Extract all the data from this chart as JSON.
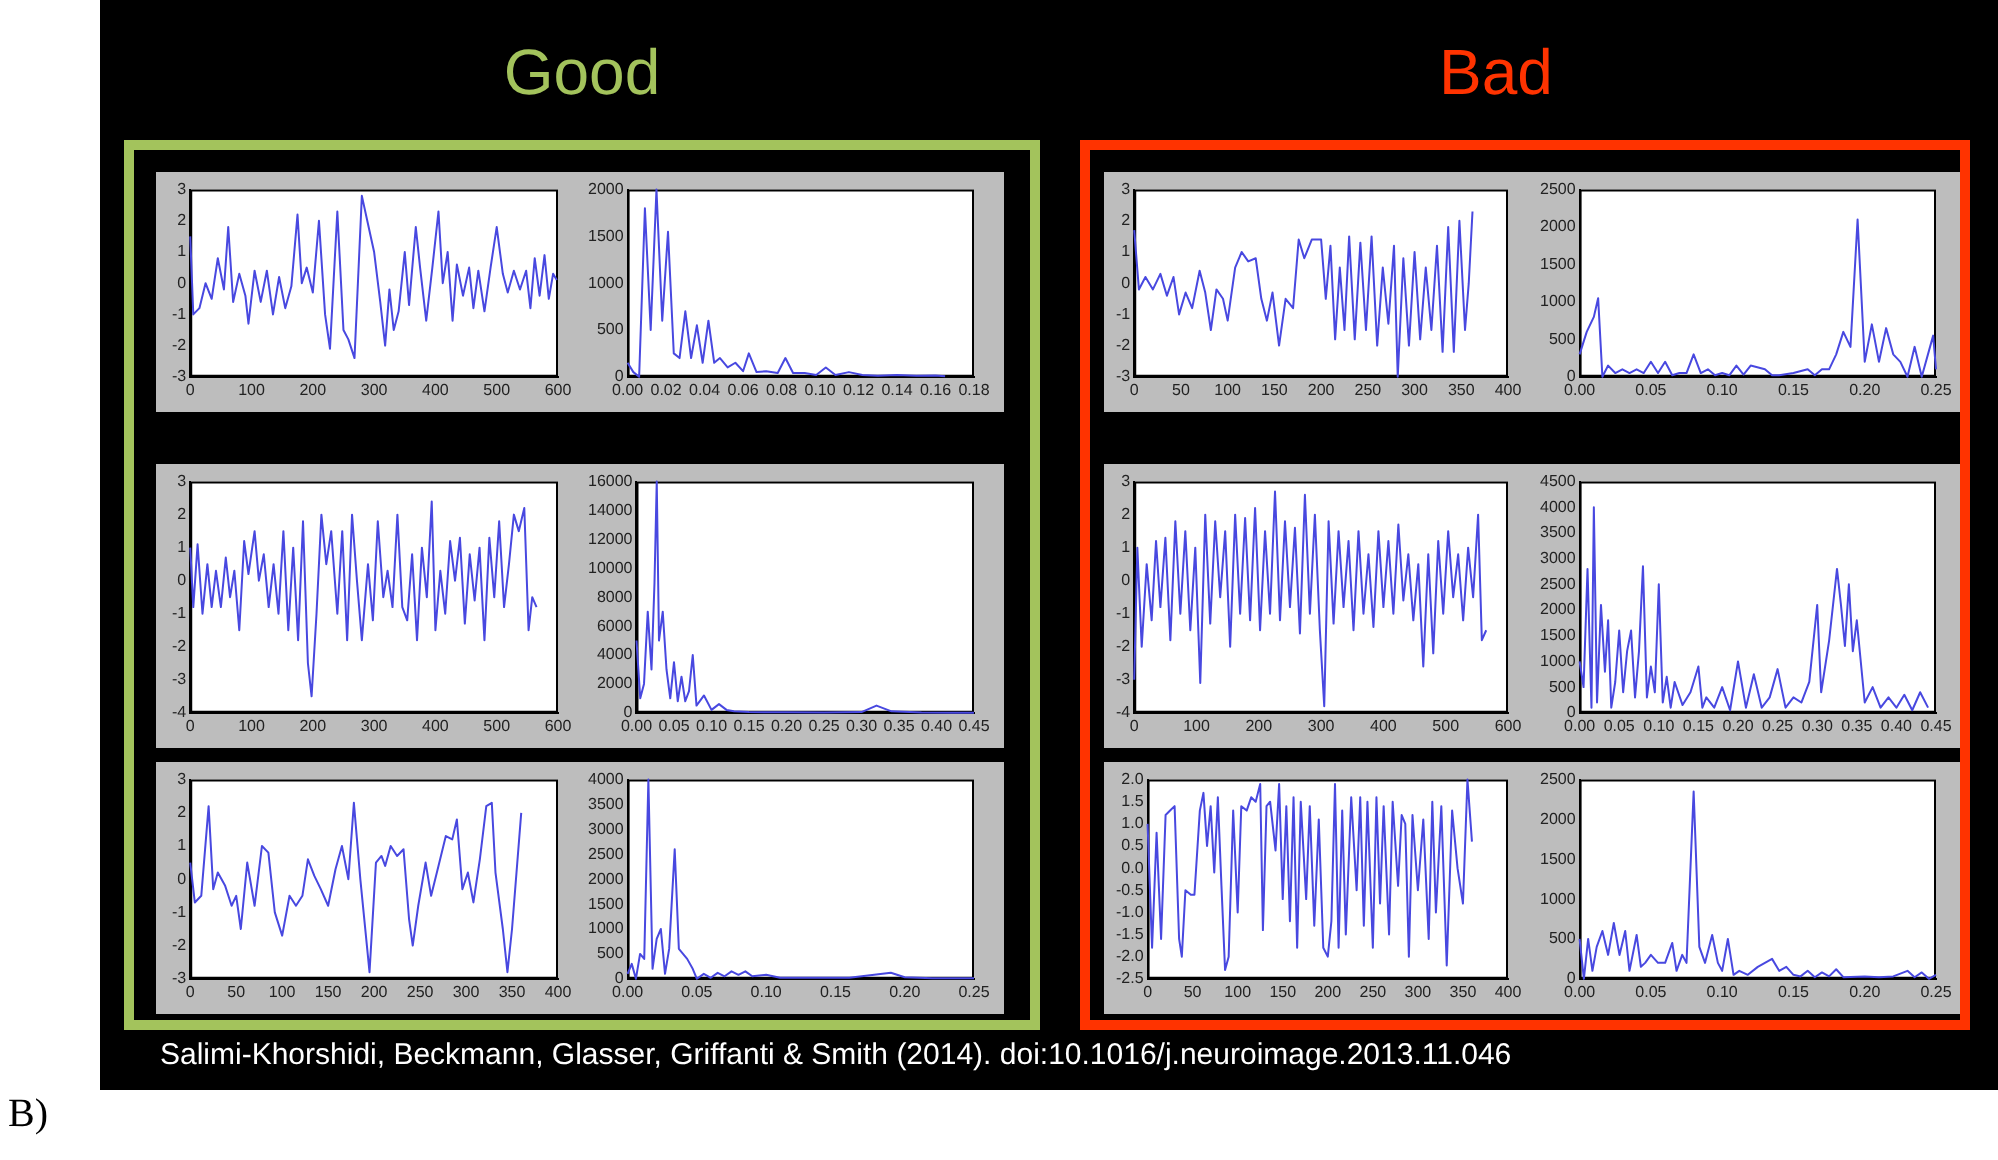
{
  "chart_data": [
    {
      "type": "line",
      "annotations": [
        "Good"
      ],
      "color": "#4848e0",
      "xlim": [
        0,
        600
      ],
      "xticks": [
        0,
        100,
        200,
        300,
        400,
        500,
        600
      ],
      "ylim": [
        -3,
        3
      ],
      "yticks": [
        -3,
        -2,
        -1,
        0,
        1,
        2,
        3
      ],
      "grid": false,
      "x": [
        0,
        5,
        15,
        25,
        35,
        45,
        55,
        62,
        70,
        80,
        90,
        95,
        105,
        115,
        125,
        135,
        145,
        155,
        165,
        175,
        182,
        190,
        200,
        210,
        220,
        228,
        240,
        250,
        258,
        268,
        280,
        290,
        300,
        310,
        318,
        325,
        332,
        340,
        350,
        357,
        368,
        375,
        385,
        395,
        405,
        412,
        420,
        428,
        435,
        445,
        455,
        462,
        470,
        480,
        490,
        500,
        510,
        518,
        528,
        538,
        548,
        555,
        562,
        570,
        578,
        585,
        592,
        598
      ],
      "values": [
        1.5,
        -1,
        -0.8,
        0,
        -0.5,
        0.8,
        -0.2,
        1.8,
        -0.6,
        0.3,
        -0.4,
        -1.3,
        0.4,
        -0.6,
        0.4,
        -1,
        0.2,
        -0.8,
        -0.1,
        2.2,
        0,
        0.5,
        -0.3,
        2,
        -1,
        -2.1,
        2.3,
        -1.5,
        -1.8,
        -2.4,
        2.8,
        1.9,
        1,
        -0.6,
        -2,
        -0.2,
        -1.5,
        -0.9,
        1,
        -0.7,
        1.8,
        0.5,
        -1.2,
        0.5,
        2.3,
        0,
        1,
        -1.2,
        0.6,
        -0.4,
        0.5,
        -0.8,
        0.4,
        -0.9,
        0.5,
        1.8,
        0.3,
        -0.3,
        0.4,
        -0.2,
        0.4,
        -0.8,
        0.8,
        -0.4,
        0.9,
        -0.5,
        0.3,
        0.1
      ]
    },
    {
      "type": "line",
      "color": "#4848e0",
      "xlim": [
        0,
        0.18
      ],
      "xticks": [
        {
          "value": 0,
          "label": "0.00"
        },
        {
          "value": 0.02,
          "label": "0.02"
        },
        {
          "value": 0.04,
          "label": "0.04"
        },
        {
          "value": 0.06,
          "label": "0.06"
        },
        {
          "value": 0.08,
          "label": "0.08"
        },
        {
          "value": 0.1,
          "label": "0.10"
        },
        {
          "value": 0.12,
          "label": "0.12"
        },
        {
          "value": 0.14,
          "label": "0.14"
        },
        {
          "value": 0.16,
          "label": "0.16"
        },
        {
          "value": 0.18,
          "label": "0.18"
        }
      ],
      "ylim": [
        0,
        2000
      ],
      "yticks": [
        0,
        500,
        1000,
        1500,
        2000
      ],
      "grid": false,
      "x": [
        0,
        0.003,
        0.006,
        0.009,
        0.012,
        0.015,
        0.018,
        0.021,
        0.024,
        0.027,
        0.03,
        0.033,
        0.036,
        0.039,
        0.042,
        0.045,
        0.048,
        0.052,
        0.056,
        0.06,
        0.063,
        0.067,
        0.072,
        0.078,
        0.082,
        0.086,
        0.092,
        0.098,
        0.103,
        0.108,
        0.115,
        0.122,
        0.13,
        0.14,
        0.15,
        0.16,
        0.165
      ],
      "values": [
        150,
        50,
        0,
        1800,
        500,
        2000,
        600,
        1550,
        250,
        200,
        700,
        200,
        550,
        150,
        600,
        150,
        200,
        100,
        150,
        60,
        250,
        50,
        60,
        40,
        200,
        40,
        40,
        20,
        100,
        20,
        50,
        20,
        10,
        20,
        10,
        15,
        5
      ]
    },
    {
      "type": "line",
      "color": "#4848e0",
      "xlim": [
        0,
        600
      ],
      "xticks": [
        0,
        100,
        200,
        300,
        400,
        500,
        600
      ],
      "ylim": [
        -4,
        3
      ],
      "yticks": [
        -4,
        -3,
        -2,
        -1,
        0,
        1,
        2,
        3
      ],
      "grid": false,
      "x": [
        0,
        5,
        12,
        20,
        28,
        35,
        42,
        50,
        58,
        65,
        72,
        80,
        88,
        95,
        105,
        112,
        120,
        128,
        136,
        144,
        152,
        160,
        168,
        176,
        184,
        192,
        198,
        206,
        214,
        222,
        230,
        240,
        248,
        256,
        264,
        272,
        280,
        290,
        298,
        306,
        315,
        322,
        330,
        338,
        346,
        354,
        362,
        370,
        378,
        386,
        394,
        400,
        408,
        416,
        424,
        432,
        440,
        448,
        456,
        464,
        472,
        480,
        488,
        496,
        504,
        512,
        520,
        528,
        536,
        545,
        552,
        558,
        565
      ],
      "values": [
        1,
        -0.8,
        1.1,
        -1,
        0.5,
        -0.8,
        0.3,
        -0.8,
        0.7,
        -0.5,
        0.3,
        -1.5,
        1.2,
        0.2,
        1.5,
        0,
        0.8,
        -0.8,
        0.5,
        -1,
        1.5,
        -1.5,
        1,
        -1.8,
        1.8,
        -2.5,
        -3.5,
        -1,
        2,
        0.5,
        1.5,
        -1,
        1.5,
        -1.8,
        2,
        0,
        -1.8,
        0.5,
        -1.2,
        1.8,
        -0.5,
        0.3,
        -0.8,
        2,
        -0.8,
        -1.2,
        0.8,
        -1.8,
        1,
        -0.5,
        2.4,
        -1.5,
        0.3,
        -1,
        1.2,
        0,
        1.3,
        -1.3,
        0.8,
        -0.6,
        1,
        -1.8,
        1.3,
        -0.5,
        1.8,
        -0.8,
        0.5,
        2,
        1.5,
        2.2,
        -1.5,
        -0.5,
        -0.8
      ]
    },
    {
      "type": "line",
      "color": "#4848e0",
      "xlim": [
        0,
        0.45
      ],
      "xticks": [
        {
          "value": 0,
          "label": "0.00"
        },
        {
          "value": 0.05,
          "label": "0.05"
        },
        {
          "value": 0.1,
          "label": "0.10"
        },
        {
          "value": 0.15,
          "label": "0.15"
        },
        {
          "value": 0.2,
          "label": "0.20"
        },
        {
          "value": 0.25,
          "label": "0.25"
        },
        {
          "value": 0.3,
          "label": "0.30"
        },
        {
          "value": 0.35,
          "label": "0.35"
        },
        {
          "value": 0.4,
          "label": "0.40"
        },
        {
          "value": 0.45,
          "label": "0.45"
        }
      ],
      "ylim": [
        0,
        16000
      ],
      "yticks": [
        0,
        2000,
        4000,
        6000,
        8000,
        10000,
        12000,
        14000,
        16000
      ],
      "grid": false,
      "x": [
        0,
        0.005,
        0.01,
        0.015,
        0.02,
        0.024,
        0.027,
        0.03,
        0.035,
        0.04,
        0.045,
        0.05,
        0.055,
        0.06,
        0.065,
        0.07,
        0.075,
        0.08,
        0.09,
        0.1,
        0.11,
        0.12,
        0.13,
        0.15,
        0.2,
        0.25,
        0.3,
        0.32,
        0.34,
        0.38,
        0.42,
        0.45
      ],
      "values": [
        5000,
        1000,
        2000,
        7000,
        3000,
        9000,
        16000,
        5000,
        7000,
        3000,
        1000,
        3500,
        800,
        2500,
        800,
        1500,
        4000,
        500,
        1200,
        200,
        600,
        200,
        100,
        50,
        30,
        20,
        50,
        500,
        100,
        20,
        10,
        0
      ]
    },
    {
      "type": "line",
      "color": "#4848e0",
      "xlim": [
        0,
        400
      ],
      "xticks": [
        0,
        50,
        100,
        150,
        200,
        250,
        300,
        350,
        400
      ],
      "ylim": [
        -3,
        3
      ],
      "yticks": [
        -3,
        -2,
        -1,
        0,
        1,
        2,
        3
      ],
      "grid": false,
      "x": [
        0,
        5,
        12,
        20,
        25,
        30,
        38,
        45,
        50,
        55,
        62,
        70,
        78,
        85,
        92,
        100,
        108,
        115,
        122,
        128,
        135,
        142,
        150,
        158,
        165,
        172,
        178,
        185,
        195,
        202,
        208,
        212,
        218,
        225,
        232,
        238,
        242,
        248,
        256,
        262,
        270,
        278,
        285,
        290,
        296,
        302,
        308,
        315,
        322,
        328,
        332,
        340,
        345,
        350,
        360
      ],
      "values": [
        0.5,
        -0.7,
        -0.5,
        2.2,
        -0.3,
        0.2,
        -0.2,
        -0.8,
        -0.5,
        -1.5,
        0.5,
        -0.8,
        1,
        0.8,
        -1,
        -1.7,
        -0.5,
        -0.8,
        -0.5,
        0.6,
        0.1,
        -0.3,
        -0.8,
        0.3,
        1,
        0,
        2.3,
        0,
        -2.8,
        0.5,
        0.7,
        0.4,
        1,
        0.7,
        0.9,
        -1.2,
        -2,
        -0.8,
        0.5,
        -0.5,
        0.4,
        1.3,
        1.2,
        1.8,
        -0.3,
        0.2,
        -0.7,
        0.6,
        2.2,
        2.3,
        0.2,
        -1.5,
        -2.8,
        -1.5,
        2
      ]
    },
    {
      "type": "line",
      "color": "#4848e0",
      "xlim": [
        0,
        0.25
      ],
      "xticks": [
        {
          "value": 0,
          "label": "0.00"
        },
        {
          "value": 0.05,
          "label": "0.05"
        },
        {
          "value": 0.1,
          "label": "0.10"
        },
        {
          "value": 0.15,
          "label": "0.15"
        },
        {
          "value": 0.2,
          "label": "0.20"
        },
        {
          "value": 0.25,
          "label": "0.25"
        }
      ],
      "ylim": [
        0,
        4000
      ],
      "yticks": [
        0,
        500,
        1000,
        1500,
        2000,
        2500,
        3000,
        3500,
        4000
      ],
      "grid": false,
      "x": [
        0,
        0.003,
        0.006,
        0.009,
        0.012,
        0.015,
        0.018,
        0.021,
        0.024,
        0.027,
        0.03,
        0.034,
        0.037,
        0.04,
        0.043,
        0.047,
        0.05,
        0.055,
        0.06,
        0.065,
        0.07,
        0.075,
        0.08,
        0.085,
        0.09,
        0.1,
        0.11,
        0.13,
        0.16,
        0.19,
        0.2,
        0.22,
        0.25
      ],
      "values": [
        100,
        300,
        0,
        500,
        400,
        4000,
        200,
        800,
        1000,
        100,
        600,
        2600,
        600,
        500,
        400,
        200,
        0,
        100,
        20,
        120,
        50,
        150,
        80,
        150,
        50,
        80,
        20,
        20,
        20,
        120,
        30,
        10,
        10
      ]
    },
    {
      "type": "line",
      "annotations": [
        "Bad"
      ],
      "color": "#4848e0",
      "xlim": [
        0,
        400
      ],
      "xticks": [
        0,
        50,
        100,
        150,
        200,
        250,
        300,
        350,
        400
      ],
      "ylim": [
        -3,
        3
      ],
      "yticks": [
        -3,
        -2,
        -1,
        0,
        1,
        2,
        3
      ],
      "grid": false,
      "x": [
        0,
        5,
        12,
        20,
        28,
        35,
        42,
        48,
        55,
        62,
        70,
        76,
        82,
        88,
        95,
        100,
        108,
        115,
        122,
        130,
        136,
        142,
        148,
        155,
        162,
        170,
        176,
        182,
        190,
        200,
        205,
        210,
        215,
        220,
        225,
        230,
        236,
        242,
        248,
        254,
        260,
        266,
        272,
        278,
        282,
        288,
        294,
        300,
        306,
        312,
        318,
        324,
        330,
        336,
        342,
        348,
        354,
        358,
        362
      ],
      "values": [
        1.7,
        -0.2,
        0.2,
        -0.2,
        0.3,
        -0.4,
        0.2,
        -1,
        -0.3,
        -0.8,
        0.4,
        -0.3,
        -1.5,
        -0.2,
        -0.5,
        -1.2,
        0.5,
        1,
        0.7,
        0.8,
        -0.5,
        -1.2,
        -0.3,
        -2,
        -0.5,
        -0.8,
        1.4,
        0.8,
        1.4,
        1.4,
        -0.5,
        1.2,
        -1.8,
        0.5,
        -1.5,
        1.5,
        -1.8,
        1.3,
        -1.5,
        1.5,
        -2,
        0.5,
        -1.3,
        1.2,
        -3,
        0.8,
        -2,
        1,
        -1.8,
        0.5,
        -1.5,
        1.2,
        -2.2,
        1.8,
        -2.2,
        2,
        -1.5,
        0,
        2.3
      ]
    },
    {
      "type": "line",
      "color": "#4848e0",
      "xlim": [
        0,
        0.25
      ],
      "xticks": [
        {
          "value": 0,
          "label": "0.00"
        },
        {
          "value": 0.05,
          "label": "0.05"
        },
        {
          "value": 0.1,
          "label": "0.10"
        },
        {
          "value": 0.15,
          "label": "0.15"
        },
        {
          "value": 0.2,
          "label": "0.20"
        },
        {
          "value": 0.25,
          "label": "0.25"
        }
      ],
      "ylim": [
        0,
        2500
      ],
      "yticks": [
        0,
        500,
        1000,
        1500,
        2000,
        2500
      ],
      "grid": false,
      "x": [
        0,
        0.005,
        0.01,
        0.013,
        0.016,
        0.02,
        0.025,
        0.03,
        0.035,
        0.04,
        0.045,
        0.05,
        0.055,
        0.06,
        0.065,
        0.07,
        0.075,
        0.08,
        0.085,
        0.09,
        0.095,
        0.1,
        0.105,
        0.11,
        0.115,
        0.12,
        0.13,
        0.135,
        0.14,
        0.15,
        0.16,
        0.165,
        0.17,
        0.175,
        0.18,
        0.185,
        0.19,
        0.195,
        0.2,
        0.205,
        0.21,
        0.215,
        0.22,
        0.225,
        0.23,
        0.235,
        0.24,
        0.248,
        0.25
      ],
      "values": [
        300,
        600,
        800,
        1050,
        0,
        150,
        50,
        100,
        50,
        100,
        50,
        200,
        50,
        200,
        20,
        50,
        50,
        300,
        50,
        100,
        20,
        50,
        20,
        150,
        30,
        150,
        100,
        20,
        20,
        50,
        100,
        20,
        100,
        100,
        300,
        600,
        400,
        2100,
        200,
        700,
        200,
        650,
        300,
        200,
        0,
        400,
        0,
        550,
        100
      ]
    },
    {
      "type": "line",
      "color": "#4848e0",
      "xlim": [
        0,
        600
      ],
      "xticks": [
        0,
        100,
        200,
        300,
        400,
        500,
        600
      ],
      "ylim": [
        -4,
        3
      ],
      "yticks": [
        -4,
        -3,
        -2,
        -1,
        0,
        1,
        2,
        3
      ],
      "grid": false,
      "x": [
        0,
        5,
        12,
        20,
        28,
        35,
        42,
        50,
        58,
        66,
        74,
        82,
        90,
        98,
        106,
        114,
        122,
        130,
        138,
        146,
        154,
        162,
        170,
        178,
        186,
        194,
        202,
        210,
        218,
        226,
        234,
        242,
        250,
        258,
        266,
        274,
        282,
        290,
        298,
        305,
        312,
        320,
        328,
        336,
        344,
        352,
        360,
        368,
        376,
        384,
        392,
        400,
        408,
        416,
        424,
        432,
        440,
        448,
        456,
        464,
        472,
        480,
        488,
        496,
        504,
        512,
        520,
        528,
        536,
        544,
        552,
        558,
        565
      ],
      "values": [
        -3,
        1,
        -2,
        0.5,
        -1.2,
        1.2,
        -0.8,
        1.3,
        -1.8,
        1.8,
        -1,
        1.5,
        -1.5,
        1,
        -3.1,
        2,
        -1.3,
        1.8,
        -0.5,
        1.5,
        -2,
        2,
        -1,
        1.9,
        -1.2,
        2.2,
        -1.5,
        1.5,
        -1,
        2.7,
        -1.2,
        1.8,
        -0.8,
        1.6,
        -1.6,
        2.6,
        -1,
        2,
        -1.5,
        -3.8,
        1.8,
        -1.3,
        1.5,
        -0.8,
        1.2,
        -1.5,
        1.5,
        -1,
        0.8,
        -1.4,
        1.5,
        -0.8,
        1.2,
        -1,
        1.7,
        -0.6,
        0.8,
        -1.2,
        0.5,
        -2.6,
        0.8,
        -2.2,
        1.2,
        -1,
        1.5,
        -0.5,
        0.8,
        -1.2,
        1,
        -0.5,
        2,
        -1.8,
        -1.5
      ]
    },
    {
      "type": "line",
      "color": "#4848e0",
      "xlim": [
        0,
        0.45
      ],
      "xticks": [
        {
          "value": 0,
          "label": "0.00"
        },
        {
          "value": 0.05,
          "label": "0.05"
        },
        {
          "value": 0.1,
          "label": "0.10"
        },
        {
          "value": 0.15,
          "label": "0.15"
        },
        {
          "value": 0.2,
          "label": "0.20"
        },
        {
          "value": 0.25,
          "label": "0.25"
        },
        {
          "value": 0.3,
          "label": "0.30"
        },
        {
          "value": 0.35,
          "label": "0.35"
        },
        {
          "value": 0.4,
          "label": "0.40"
        },
        {
          "value": 0.45,
          "label": "0.45"
        }
      ],
      "ylim": [
        0,
        4500
      ],
      "yticks": [
        0,
        500,
        1000,
        1500,
        2000,
        2500,
        3000,
        3500,
        4000,
        4500
      ],
      "grid": false,
      "x": [
        0,
        0.005,
        0.01,
        0.015,
        0.018,
        0.022,
        0.027,
        0.032,
        0.036,
        0.04,
        0.045,
        0.05,
        0.055,
        0.06,
        0.065,
        0.07,
        0.075,
        0.08,
        0.085,
        0.09,
        0.095,
        0.1,
        0.105,
        0.11,
        0.115,
        0.12,
        0.13,
        0.14,
        0.15,
        0.155,
        0.16,
        0.17,
        0.18,
        0.19,
        0.2,
        0.21,
        0.22,
        0.23,
        0.24,
        0.25,
        0.26,
        0.27,
        0.28,
        0.29,
        0.3,
        0.305,
        0.315,
        0.325,
        0.33,
        0.335,
        0.34,
        0.345,
        0.35,
        0.36,
        0.37,
        0.38,
        0.39,
        0.4,
        0.41,
        0.42,
        0.43,
        0.44
      ],
      "values": [
        1000,
        500,
        2800,
        100,
        4000,
        200,
        2100,
        800,
        1800,
        100,
        600,
        1600,
        400,
        1200,
        1600,
        300,
        1200,
        2850,
        300,
        900,
        400,
        2500,
        200,
        700,
        100,
        600,
        150,
        400,
        900,
        100,
        300,
        100,
        500,
        50,
        1000,
        100,
        750,
        100,
        300,
        850,
        100,
        300,
        200,
        600,
        2100,
        400,
        1400,
        2800,
        2100,
        1300,
        2500,
        1200,
        1800,
        200,
        500,
        100,
        300,
        100,
        350,
        50,
        400,
        100
      ]
    },
    {
      "type": "line",
      "color": "#4848e0",
      "xlim": [
        0,
        400
      ],
      "xticks": [
        0,
        50,
        100,
        150,
        200,
        250,
        300,
        350,
        400
      ],
      "ylim": [
        -2.5,
        2
      ],
      "yticks": [
        {
          "value": -2.5,
          "label": "-2.5"
        },
        {
          "value": -2,
          "label": "-2.0"
        },
        {
          "value": -1.5,
          "label": "-1.5"
        },
        {
          "value": -1,
          "label": "-1.0"
        },
        {
          "value": -0.5,
          "label": "-0.5"
        },
        {
          "value": 0,
          "label": "0.0"
        },
        {
          "value": 0.5,
          "label": "0.5"
        },
        {
          "value": 1,
          "label": "1.0"
        },
        {
          "value": 1.5,
          "label": "1.5"
        },
        {
          "value": 2,
          "label": "2.0"
        }
      ],
      "grid": false,
      "x": [
        0,
        5,
        10,
        15,
        20,
        25,
        30,
        35,
        38,
        42,
        48,
        52,
        58,
        62,
        66,
        70,
        74,
        78,
        82,
        86,
        90,
        95,
        100,
        104,
        110,
        115,
        120,
        125,
        128,
        132,
        136,
        142,
        146,
        150,
        154,
        158,
        162,
        166,
        170,
        176,
        180,
        185,
        190,
        195,
        200,
        204,
        208,
        212,
        216,
        220,
        226,
        232,
        236,
        240,
        244,
        250,
        254,
        258,
        262,
        268,
        272,
        278,
        282,
        286,
        290,
        294,
        300,
        306,
        312,
        316,
        320,
        326,
        332,
        338,
        344,
        350,
        355,
        360
      ],
      "values": [
        1,
        -1.8,
        0.8,
        -1.6,
        1.2,
        1.3,
        1.4,
        -1.6,
        -2,
        -0.5,
        -0.6,
        -0.6,
        1.3,
        1.7,
        0.5,
        1.4,
        -0.1,
        1.6,
        -0.4,
        -2.3,
        -2,
        1.3,
        -1,
        1.4,
        1.3,
        1.6,
        1.5,
        1.9,
        -1.4,
        1.4,
        1.5,
        0.4,
        1.9,
        -0.7,
        1.4,
        -1.2,
        1.6,
        -1.8,
        1.5,
        -0.7,
        1.4,
        -1.3,
        1.1,
        -1.8,
        -2,
        -1.2,
        1.9,
        -1.8,
        1.3,
        -1.5,
        1.6,
        -0.5,
        1.6,
        -1.3,
        1.5,
        -1.8,
        1.6,
        -0.8,
        1.4,
        -1.5,
        1.5,
        -0.4,
        1.2,
        1,
        -2,
        1.2,
        -0.5,
        1.1,
        -1.6,
        1.5,
        -1,
        1.4,
        -2.2,
        1.3,
        0,
        -0.8,
        2,
        0.6
      ]
    },
    {
      "type": "line",
      "annotations": [
        "B)",
        "Salimi-Khorshidi, Beckmann, Glasser, Griffanti & Smith (2014). doi:10.1016/j.neuroimage.2013.11.046"
      ],
      "color": "#4848e0",
      "xlim": [
        0,
        0.25
      ],
      "xticks": [
        {
          "value": 0,
          "label": "0.00"
        },
        {
          "value": 0.05,
          "label": "0.05"
        },
        {
          "value": 0.1,
          "label": "0.10"
        },
        {
          "value": 0.15,
          "label": "0.15"
        },
        {
          "value": 0.2,
          "label": "0.20"
        },
        {
          "value": 0.25,
          "label": "0.25"
        }
      ],
      "ylim": [
        0,
        2500
      ],
      "yticks": [
        0,
        500,
        1000,
        1500,
        2000,
        2500
      ],
      "grid": false,
      "x": [
        0,
        0.003,
        0.006,
        0.009,
        0.012,
        0.016,
        0.02,
        0.024,
        0.028,
        0.032,
        0.035,
        0.04,
        0.043,
        0.046,
        0.05,
        0.055,
        0.06,
        0.065,
        0.068,
        0.072,
        0.075,
        0.08,
        0.084,
        0.088,
        0.093,
        0.097,
        0.1,
        0.104,
        0.108,
        0.112,
        0.118,
        0.125,
        0.13,
        0.135,
        0.14,
        0.145,
        0.15,
        0.155,
        0.16,
        0.165,
        0.17,
        0.175,
        0.18,
        0.185,
        0.2,
        0.21,
        0.22,
        0.23,
        0.235,
        0.24,
        0.245,
        0.25
      ],
      "values": [
        500,
        0,
        500,
        100,
        400,
        600,
        300,
        700,
        300,
        600,
        100,
        550,
        150,
        200,
        300,
        200,
        200,
        450,
        100,
        300,
        200,
        2350,
        400,
        200,
        550,
        200,
        100,
        500,
        50,
        100,
        50,
        150,
        200,
        250,
        100,
        150,
        50,
        30,
        100,
        20,
        80,
        30,
        120,
        20,
        30,
        20,
        30,
        100,
        20,
        80,
        0,
        50
      ]
    }
  ]
}
